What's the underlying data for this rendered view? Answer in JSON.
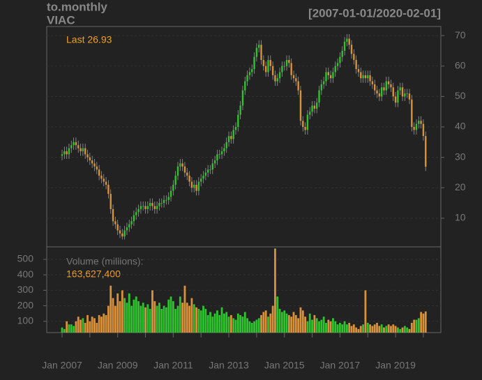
{
  "chart_data": {
    "type": "candlestick",
    "title": "to.monthly",
    "subtitle": "VIAC",
    "date_range": "[2007-01-01/2020-02-01]",
    "last_text": "Last 26.93",
    "volume_title": "Volume (millions):",
    "volume_last_label": "163,627,400",
    "up_color": "#2fc42f",
    "down_color": "#d9913a",
    "grid": true,
    "categories": [
      "Jan 2007",
      null,
      null,
      null,
      null,
      null,
      null,
      null,
      null,
      null,
      null,
      null,
      null,
      null,
      null,
      null,
      null,
      null,
      null,
      null,
      null,
      null,
      null,
      null,
      "Jan 2009",
      null,
      null,
      null,
      null,
      null,
      null,
      null,
      null,
      null,
      null,
      null,
      null,
      null,
      null,
      null,
      null,
      null,
      null,
      null,
      null,
      null,
      null,
      null,
      "Jan 2011",
      null,
      null,
      null,
      null,
      null,
      null,
      null,
      null,
      null,
      null,
      null,
      null,
      null,
      null,
      null,
      null,
      null,
      null,
      null,
      null,
      null,
      null,
      null,
      "Jan 2013",
      null,
      null,
      null,
      null,
      null,
      null,
      null,
      null,
      null,
      null,
      null,
      null,
      null,
      null,
      null,
      null,
      null,
      null,
      null,
      null,
      null,
      null,
      null,
      "Jan 2015",
      null,
      null,
      null,
      null,
      null,
      null,
      null,
      null,
      null,
      null,
      null,
      null,
      null,
      null,
      null,
      null,
      null,
      null,
      null,
      null,
      null,
      null,
      null,
      "Jan 2017",
      null,
      null,
      null,
      null,
      null,
      null,
      null,
      null,
      null,
      null,
      null,
      null,
      null,
      null,
      null,
      null,
      null,
      null,
      null,
      null,
      null,
      null,
      null,
      "Jan 2019",
      null,
      null,
      null,
      null,
      null,
      null,
      null,
      null,
      null,
      null,
      null,
      null,
      null
    ],
    "open": [
      30.5,
      31,
      32,
      31,
      33,
      34,
      35,
      34,
      33,
      32,
      33,
      31,
      30,
      29,
      28,
      27,
      26,
      24,
      23,
      22,
      21,
      18,
      13,
      9,
      8,
      6,
      5,
      4,
      6,
      7,
      8,
      9,
      11,
      12,
      13,
      14,
      14,
      13,
      14,
      15,
      14,
      13,
      14,
      15,
      15,
      16,
      16,
      17,
      19,
      21,
      24,
      27,
      28,
      27,
      25,
      24,
      22,
      20,
      21,
      19,
      22,
      23,
      24,
      25,
      26,
      26,
      28,
      29,
      31,
      31,
      32,
      33,
      35,
      37,
      36,
      39,
      40,
      44,
      47,
      52,
      55,
      57,
      58,
      59,
      63,
      66,
      67,
      62,
      60,
      58,
      62,
      60,
      57,
      55,
      56,
      58,
      60,
      60,
      62,
      61,
      57,
      56,
      55,
      52,
      42,
      40,
      39,
      44,
      45,
      47,
      46,
      48,
      52,
      54,
      55,
      58,
      57,
      56,
      58,
      60,
      61,
      63,
      65,
      68,
      69,
      67,
      64,
      62,
      59,
      58,
      56,
      57,
      56,
      57,
      55,
      54,
      52,
      51,
      50,
      53,
      52,
      55,
      54,
      53,
      50,
      48,
      52,
      53,
      50,
      51,
      51,
      49,
      40,
      39,
      41,
      42,
      41,
      37
    ],
    "high": [
      32.5,
      33.5,
      33.5,
      34.5,
      35.5,
      36.5,
      36.5,
      35.5,
      34.5,
      34.5,
      34.5,
      32.5,
      31.5,
      30.5,
      29.5,
      28.5,
      27.5,
      25.5,
      24.5,
      23.5,
      22.5,
      19.5,
      14.5,
      10.5,
      9.5,
      7.5,
      6.5,
      7.5,
      8.5,
      9.5,
      10.5,
      12.5,
      13.5,
      14.5,
      15.5,
      15.5,
      15.5,
      15.5,
      16.5,
      16.5,
      15.5,
      15.5,
      16.5,
      16.5,
      17.5,
      17.5,
      18.5,
      20.5,
      22.5,
      25.5,
      28.5,
      29.5,
      29.5,
      28.5,
      26.5,
      25.5,
      23.5,
      22.5,
      22.5,
      23.5,
      24.5,
      25.5,
      26.5,
      27.5,
      27.5,
      29.5,
      30.5,
      32.5,
      32.5,
      33.5,
      34.5,
      36.5,
      38.5,
      38.5,
      40.5,
      41.5,
      45.5,
      48.5,
      53.5,
      56.5,
      58.5,
      59.5,
      60.5,
      64.5,
      67.5,
      68.5,
      68.5,
      63.5,
      61.5,
      63.5,
      63.5,
      61.5,
      58.5,
      57.5,
      59.5,
      61.5,
      61.5,
      63.5,
      63.5,
      62.5,
      58.5,
      57.5,
      56.5,
      53.5,
      43.5,
      41.5,
      45.5,
      46.5,
      48.5,
      48.5,
      49.5,
      53.5,
      55.5,
      56.5,
      59.5,
      59.5,
      58.5,
      59.5,
      61.5,
      62.5,
      64.5,
      66.5,
      69.5,
      70.5,
      70.5,
      68.5,
      65.5,
      63.5,
      60.5,
      59.5,
      58.5,
      58.5,
      58.5,
      58.5,
      56.5,
      55.5,
      53.5,
      52.5,
      54.5,
      54.5,
      56.5,
      56.5,
      55.5,
      54.5,
      51.5,
      53.5,
      54.5,
      54.5,
      52.5,
      52.5,
      52.5,
      50.5,
      41.5,
      42.5,
      43.5,
      43.5,
      42.5,
      38.5
    ],
    "low": [
      29,
      29.5,
      29.5,
      29.5,
      31.5,
      32.5,
      32.5,
      31.5,
      30.5,
      30.5,
      29.5,
      28.5,
      27.5,
      26.5,
      25.5,
      24.5,
      22.5,
      21.5,
      20.5,
      19.5,
      16.5,
      11.5,
      7.5,
      6.5,
      4.5,
      3.5,
      3,
      3,
      4.5,
      5.5,
      6.5,
      7.5,
      9.5,
      10.5,
      11.5,
      12.5,
      11.5,
      11.5,
      12.5,
      12.5,
      11.5,
      11.5,
      12.5,
      13.5,
      13.5,
      14.5,
      14.5,
      15.5,
      17.5,
      19.5,
      22.5,
      25.5,
      25.5,
      23.5,
      22.5,
      20.5,
      18.5,
      18.5,
      17.5,
      17.5,
      20.5,
      21.5,
      22.5,
      23.5,
      24.5,
      24.5,
      26.5,
      27.5,
      29.5,
      29.5,
      30.5,
      31.5,
      33.5,
      34.5,
      34.5,
      37.5,
      38.5,
      42.5,
      45.5,
      50.5,
      53.5,
      55.5,
      56.5,
      57.5,
      61.5,
      64.5,
      60.5,
      58.5,
      56.5,
      56.5,
      58.5,
      55.5,
      53.5,
      53.5,
      54.5,
      56.5,
      58.5,
      58.5,
      59.5,
      55.5,
      54.5,
      53.5,
      50.5,
      40.5,
      38.5,
      37.5,
      37.5,
      42.5,
      43.5,
      44.5,
      44.5,
      46.5,
      50.5,
      52.5,
      53.5,
      55.5,
      54.5,
      54.5,
      56.5,
      58.5,
      59.5,
      61.5,
      63.5,
      66.5,
      65.5,
      62.5,
      60.5,
      57.5,
      56.5,
      54.5,
      54.5,
      54.5,
      54.5,
      53.5,
      52.5,
      50.5,
      49.5,
      48.5,
      48.5,
      50.5,
      50.5,
      52.5,
      51.5,
      48.5,
      46.5,
      46.5,
      50.5,
      48.5,
      48.5,
      49.5,
      47.5,
      38.5,
      37.5,
      37.5,
      39.5,
      39.5,
      35.5,
      25.5
    ],
    "close": [
      31,
      32,
      31,
      33,
      34,
      35,
      34,
      33,
      32,
      33,
      31,
      30,
      29,
      28,
      27,
      26,
      24,
      23,
      22,
      21,
      18,
      13,
      9,
      8,
      6,
      5,
      4,
      6,
      7,
      8,
      9,
      11,
      12,
      13,
      14,
      14,
      13,
      14,
      15,
      14,
      13,
      14,
      15,
      15,
      16,
      16,
      17,
      19,
      21,
      24,
      27,
      28,
      27,
      25,
      24,
      22,
      20,
      21,
      19,
      22,
      23,
      24,
      25,
      26,
      26,
      28,
      29,
      31,
      31,
      32,
      33,
      35,
      37,
      36,
      39,
      40,
      44,
      47,
      52,
      55,
      57,
      58,
      59,
      63,
      66,
      67,
      62,
      60,
      58,
      62,
      60,
      57,
      55,
      56,
      58,
      60,
      60,
      62,
      61,
      57,
      56,
      55,
      52,
      42,
      40,
      39,
      44,
      45,
      47,
      46,
      48,
      52,
      54,
      55,
      58,
      57,
      56,
      58,
      60,
      61,
      63,
      65,
      68,
      69,
      67,
      64,
      62,
      59,
      58,
      56,
      57,
      56,
      57,
      55,
      54,
      52,
      51,
      50,
      53,
      52,
      55,
      54,
      53,
      50,
      48,
      52,
      53,
      50,
      51,
      51,
      49,
      40,
      39,
      41,
      42,
      41,
      37,
      26.93
    ],
    "volume": [
      60,
      50,
      100,
      80,
      80,
      70,
      100,
      130,
      110,
      120,
      90,
      140,
      100,
      130,
      120,
      90,
      140,
      130,
      150,
      140,
      200,
      330,
      250,
      200,
      280,
      230,
      300,
      250,
      220,
      280,
      200,
      240,
      260,
      230,
      200,
      220,
      190,
      210,
      180,
      300,
      230,
      200,
      220,
      180,
      200,
      190,
      240,
      260,
      230,
      180,
      200,
      260,
      220,
      330,
      220,
      200,
      250,
      210,
      190,
      180,
      170,
      200,
      180,
      140,
      160,
      130,
      150,
      170,
      140,
      190,
      150,
      160,
      130,
      140,
      120,
      110,
      150,
      140,
      130,
      160,
      120,
      100,
      90,
      100,
      110,
      120,
      140,
      160,
      170,
      130,
      150,
      200,
      570,
      260,
      180,
      160,
      170,
      150,
      140,
      130,
      160,
      140,
      120,
      190,
      170,
      130,
      100,
      150,
      110,
      140,
      120,
      100,
      110,
      130,
      90,
      110,
      100,
      120,
      100,
      80,
      90,
      80,
      100,
      80,
      90,
      70,
      80,
      60,
      50,
      70,
      80,
      300,
      90,
      80,
      70,
      80,
      90,
      70,
      80,
      60,
      70,
      80,
      70,
      80,
      70,
      60,
      50,
      60,
      70,
      60,
      50,
      90,
      110,
      110,
      120,
      160,
      150,
      163.6274
    ],
    "ylim": [
      0.6,
      73
    ],
    "yticks": [
      10,
      20,
      30,
      40,
      50,
      60,
      70
    ],
    "y2lim": [
      27,
      581
    ],
    "y2ticks": [
      100,
      200,
      300,
      400,
      500
    ]
  }
}
